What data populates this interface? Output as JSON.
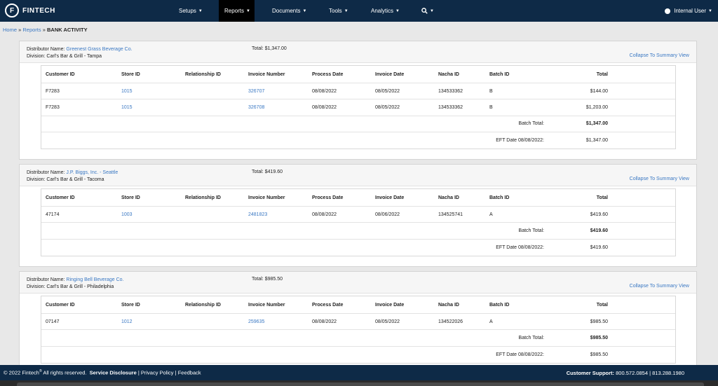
{
  "brand": {
    "name": "FINTECH",
    "icon": "fintech-logo-icon"
  },
  "nav": [
    {
      "label": "Setups",
      "active": false
    },
    {
      "label": "Reports",
      "active": true
    },
    {
      "label": "Documents",
      "active": false
    },
    {
      "label": "Tools",
      "active": false
    },
    {
      "label": "Analytics",
      "active": false
    }
  ],
  "user": {
    "label": "Internal User"
  },
  "breadcrumb": {
    "home": "Home",
    "reports": "Reports",
    "sep": "»",
    "current": "BANK ACTIVITY"
  },
  "columns": [
    "Customer ID",
    "Store ID",
    "Relationship ID",
    "Invoice Number",
    "Process Date",
    "Invoice Date",
    "Nacha ID",
    "Batch ID",
    "Total"
  ],
  "labels": {
    "distributor": "Distributor Name:",
    "division": "Division:",
    "total": "Total:",
    "collapse": "Collapse To Summary View",
    "batch_total": "Batch Total:"
  },
  "panels": [
    {
      "distributor": "Greenest Grass Beverage Co.",
      "division": "Carl's Bar & Grill - Tampa",
      "total": "$1,347.00",
      "rows": [
        {
          "customer": "F7283",
          "store": "1015",
          "relationship": "",
          "invoice": "326707",
          "process": "08/08/2022",
          "invoice_date": "08/05/2022",
          "nacha": "134533362",
          "batch": "B",
          "total": "$144.00"
        },
        {
          "customer": "F7283",
          "store": "1015",
          "relationship": "",
          "invoice": "326708",
          "process": "08/08/2022",
          "invoice_date": "08/05/2022",
          "nacha": "134533362",
          "batch": "B",
          "total": "$1,203.00"
        }
      ],
      "batch_total": "$1,347.00",
      "eft_label": "EFT Date 08/08/2022:",
      "eft_total": "$1,347.00"
    },
    {
      "distributor": "J.P. Biggs, Inc. - Seattle",
      "division": "Carl's Bar & Grill - Tacoma",
      "total": "$419.60",
      "rows": [
        {
          "customer": "47174",
          "store": "1003",
          "relationship": "",
          "invoice": "2481823",
          "process": "08/08/2022",
          "invoice_date": "08/06/2022",
          "nacha": "134525741",
          "batch": "A",
          "total": "$419.60"
        }
      ],
      "batch_total": "$419.60",
      "eft_label": "EFT Date 08/08/2022:",
      "eft_total": "$419.60"
    },
    {
      "distributor": "Ringing Bell Beverage Co.",
      "division": "Carl's Bar & Grill - Philadelphia",
      "total": "$985.50",
      "rows": [
        {
          "customer": "07147",
          "store": "1012",
          "relationship": "",
          "invoice": "259635",
          "process": "08/08/2022",
          "invoice_date": "08/05/2022",
          "nacha": "134522026",
          "batch": "A",
          "total": "$985.50"
        }
      ],
      "batch_total": "$985.50",
      "eft_label": "EFT Date 08/08/2022:",
      "eft_total": "$985.50"
    }
  ],
  "footer": {
    "copyright": "© 2022 Fintech",
    "reg": "®",
    "rights": "All rights reserved.",
    "service": "Service Disclosure",
    "privacy": "Privacy Policy",
    "feedback": "Feedback",
    "support_label": "Customer Support:",
    "support_numbers": "800.572.0854 | 813.288.1980"
  }
}
